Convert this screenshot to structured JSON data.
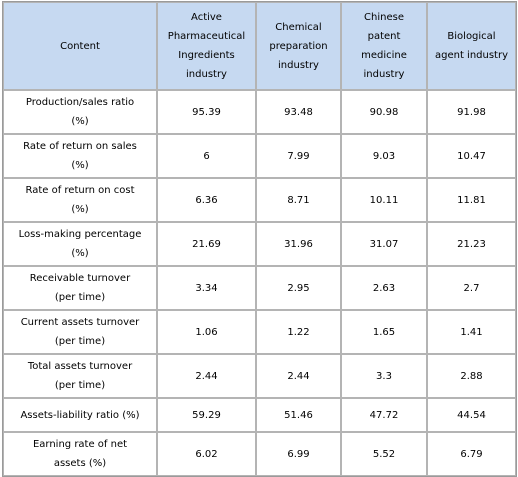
{
  "table": {
    "header": [
      "Content",
      "Active Pharmaceutical Ingredients industry",
      "Chemical preparation industry",
      "Chinese patent medicine industry",
      "Biological agent industry"
    ],
    "rows": [
      [
        "Production/sales ratio (%)",
        "95.39",
        "93.48",
        "90.98",
        "91.98"
      ],
      [
        "Rate of return on sales (%)",
        "6",
        "7.99",
        "9.03",
        "10.47"
      ],
      [
        "Rate of return on cost (%)",
        "6.36",
        "8.71",
        "10.11",
        "11.81"
      ],
      [
        "Loss-making percentage (%)",
        "21.69",
        "31.96",
        "31.07",
        "21.23"
      ],
      [
        "Receivable turnover (per time)",
        "3.34",
        "2.95",
        "2.63",
        "2.7"
      ],
      [
        "Current assets turnover (per time)",
        "1.06",
        "1.22",
        "1.65",
        "1.41"
      ],
      [
        "Total assets turnover (per time)",
        "2.44",
        "2.44",
        "3.3",
        "2.88"
      ],
      [
        "Assets-liability ratio (%)",
        "59.29",
        "51.46",
        "47.72",
        "44.54"
      ],
      [
        "Earning rate of net assets (%)",
        "6.02",
        "6.99",
        "5.52",
        "6.79"
      ]
    ]
  }
}
